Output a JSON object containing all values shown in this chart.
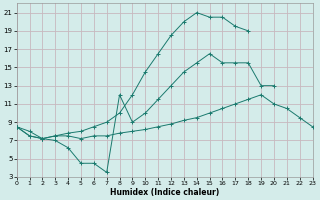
{
  "xlabel": "Humidex (Indice chaleur)",
  "bg_color": "#d4ecea",
  "grid_color": "#c8b8be",
  "line_color": "#1a7a6e",
  "xlim": [
    0,
    23
  ],
  "ylim": [
    3,
    22
  ],
  "xticks": [
    0,
    1,
    2,
    3,
    4,
    5,
    6,
    7,
    8,
    9,
    10,
    11,
    12,
    13,
    14,
    15,
    16,
    17,
    18,
    19,
    20,
    21,
    22,
    23
  ],
  "yticks": [
    3,
    5,
    7,
    9,
    11,
    13,
    15,
    17,
    19,
    21
  ],
  "line1_x": [
    0,
    1,
    2,
    3,
    4,
    5,
    6,
    7,
    8,
    9,
    10,
    11,
    12,
    13,
    14,
    15,
    16,
    17,
    18,
    19,
    20
  ],
  "line1_y": [
    8.5,
    8.0,
    7.2,
    7.0,
    6.2,
    4.5,
    4.5,
    3.5,
    12.0,
    9.0,
    10.0,
    11.5,
    13.0,
    14.5,
    15.5,
    16.5,
    15.5,
    15.5,
    15.5,
    13.0,
    13.0
  ],
  "line2_x": [
    0,
    1,
    2,
    3,
    4,
    5,
    6,
    7,
    8,
    9,
    10,
    11,
    12,
    13,
    14,
    15,
    16,
    17,
    18,
    19,
    20,
    21,
    22,
    23
  ],
  "line2_y": [
    8.5,
    7.5,
    7.2,
    7.5,
    7.5,
    7.2,
    7.5,
    7.5,
    7.8,
    8.0,
    8.2,
    8.5,
    8.8,
    9.2,
    9.5,
    10.0,
    10.5,
    11.0,
    11.5,
    12.0,
    11.0,
    10.5,
    9.5,
    8.5
  ],
  "line3_x": [
    0,
    1,
    2,
    3,
    4,
    5,
    6,
    7,
    8,
    9,
    10,
    11,
    12,
    13,
    14,
    15,
    16,
    17,
    18
  ],
  "line3_y": [
    8.5,
    7.5,
    7.2,
    7.5,
    7.8,
    8.0,
    8.5,
    9.0,
    10.0,
    12.0,
    14.5,
    16.5,
    18.5,
    20.0,
    21.0,
    20.5,
    20.5,
    19.5,
    19.0
  ]
}
